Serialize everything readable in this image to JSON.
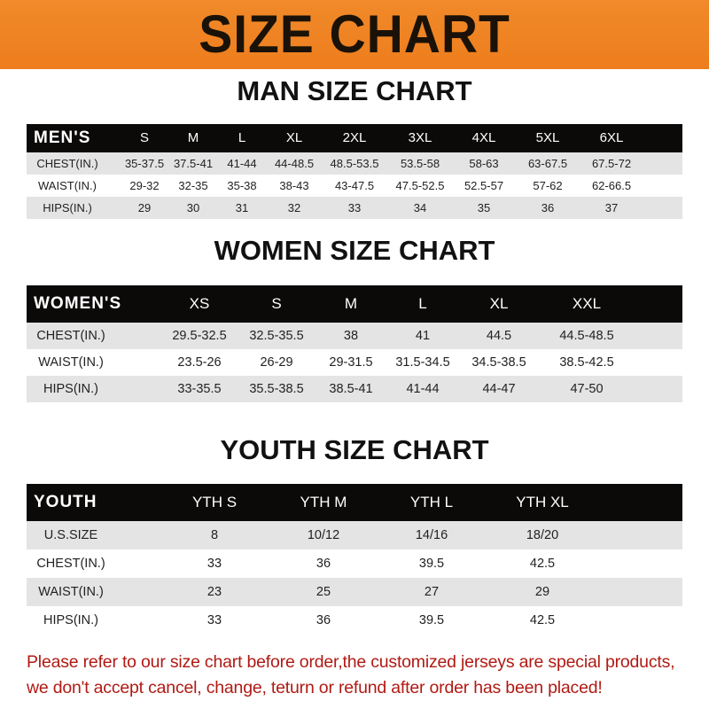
{
  "banner": {
    "title": "SIZE CHART",
    "color": "#ef8424"
  },
  "men": {
    "title": "MAN SIZE CHART",
    "header": [
      "MEN'S",
      "S",
      "M",
      "L",
      "XL",
      "2XL",
      "3XL",
      "4XL",
      "5XL",
      "6XL"
    ],
    "rows": [
      [
        "CHEST(IN.)",
        "35-37.5",
        "37.5-41",
        "41-44",
        "44-48.5",
        "48.5-53.5",
        "53.5-58",
        "58-63",
        "63-67.5",
        "67.5-72"
      ],
      [
        "WAIST(IN.)",
        "29-32",
        "32-35",
        "35-38",
        "38-43",
        "43-47.5",
        "47.5-52.5",
        "52.5-57",
        "57-62",
        "62-66.5"
      ],
      [
        "HIPS(IN.)",
        "29",
        "30",
        "31",
        "32",
        "33",
        "34",
        "35",
        "36",
        "37"
      ]
    ]
  },
  "women": {
    "title": "WOMEN SIZE CHART",
    "header": [
      "WOMEN'S",
      "XS",
      "S",
      "M",
      "L",
      "XL",
      "XXL"
    ],
    "rows": [
      [
        "CHEST(IN.)",
        "29.5-32.5",
        "32.5-35.5",
        "38",
        "41",
        "44.5",
        "44.5-48.5"
      ],
      [
        "WAIST(IN.)",
        "23.5-26",
        "26-29",
        "29-31.5",
        "31.5-34.5",
        "34.5-38.5",
        "38.5-42.5"
      ],
      [
        "HIPS(IN.)",
        "33-35.5",
        "35.5-38.5",
        "38.5-41",
        "41-44",
        "44-47",
        "47-50"
      ]
    ]
  },
  "youth": {
    "title": "YOUTH SIZE CHART",
    "header": [
      "YOUTH",
      "YTH S",
      "YTH M",
      "YTH L",
      "YTH XL"
    ],
    "rows": [
      [
        "U.S.SIZE",
        "8",
        "10/12",
        "14/16",
        "18/20"
      ],
      [
        "CHEST(IN.)",
        "33",
        "36",
        "39.5",
        "42.5"
      ],
      [
        "WAIST(IN.)",
        "23",
        "25",
        "27",
        "29"
      ],
      [
        "HIPS(IN.)",
        "33",
        "36",
        "39.5",
        "42.5"
      ]
    ]
  },
  "notice": {
    "line1": "Please refer to our size chart before order,the customized jerseys are special products,",
    "line2": "we don't accept cancel, change, teturn or refund after order has been placed!",
    "color": "#b01a14"
  }
}
